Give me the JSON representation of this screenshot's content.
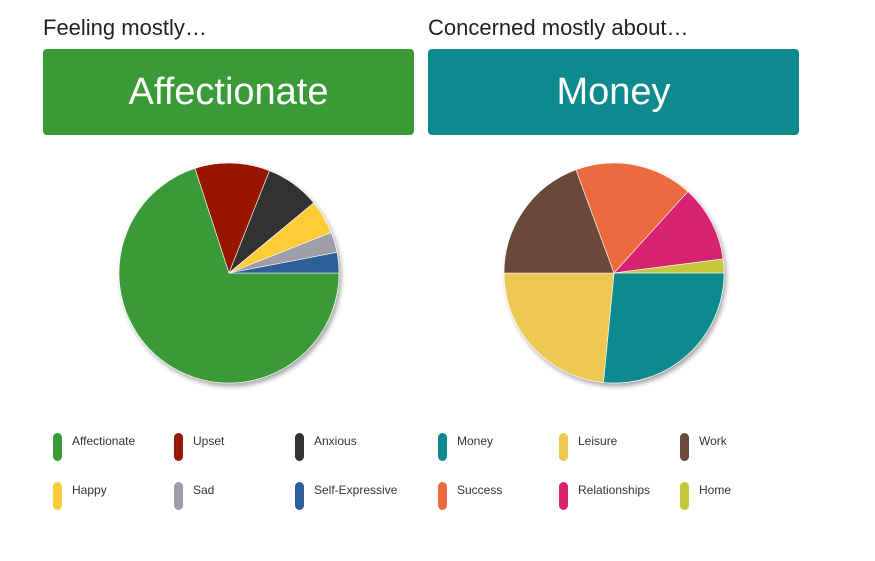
{
  "feelings": {
    "heading": "Feeling mostly…",
    "banner_label": "Affectionate",
    "banner_color": "#3a9a37"
  },
  "concerns": {
    "heading": "Concerned mostly about…",
    "banner_label": "Money",
    "banner_color": "#0e8a8e"
  },
  "chart_data": [
    {
      "type": "pie",
      "title": "",
      "legend_placement": "bottom",
      "slices": [
        {
          "label": "Affectionate",
          "value": 70,
          "color": "#3a9a37"
        },
        {
          "label": "Upset",
          "value": 11,
          "color": "#981906"
        },
        {
          "label": "Anxious",
          "value": 8,
          "color": "#333333"
        },
        {
          "label": "Happy",
          "value": 5,
          "color": "#ffcc38"
        },
        {
          "label": "Sad",
          "value": 3,
          "color": "#9e9ea8"
        },
        {
          "label": "Self-Expressive",
          "value": 3,
          "color": "#2e5f97"
        }
      ],
      "legend_order": [
        "Affectionate",
        "Upset",
        "Anxious",
        "Happy",
        "Sad",
        "Self-Expressive"
      ]
    },
    {
      "type": "pie",
      "title": "",
      "legend_placement": "bottom",
      "slices": [
        {
          "label": "Money",
          "value": 26,
          "color": "#0e8a8e"
        },
        {
          "label": "Leisure",
          "value": 23,
          "color": "#ecc852"
        },
        {
          "label": "Work",
          "value": 19,
          "color": "#6b4a3a"
        },
        {
          "label": "Success",
          "value": 17,
          "color": "#ec6a40"
        },
        {
          "label": "Relationships",
          "value": 11,
          "color": "#d6246f"
        },
        {
          "label": "Home",
          "value": 2,
          "color": "#c5c83a"
        }
      ],
      "legend_order": [
        "Money",
        "Leisure",
        "Work",
        "Success",
        "Relationships",
        "Home"
      ]
    }
  ]
}
